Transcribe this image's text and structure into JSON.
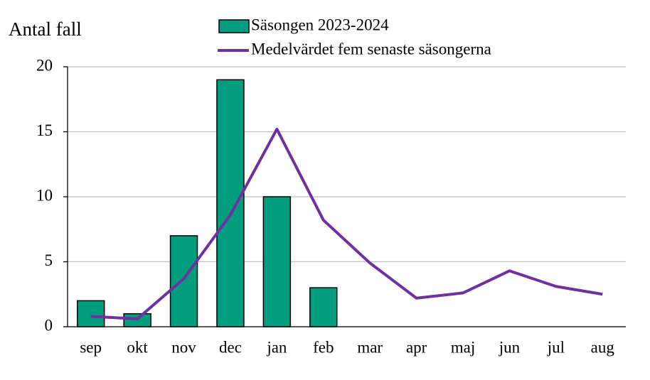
{
  "chart_data": {
    "type": "bar",
    "ylabel": "Antal fall",
    "categories": [
      "sep",
      "okt",
      "nov",
      "dec",
      "jan",
      "feb",
      "mar",
      "apr",
      "maj",
      "jun",
      "jul",
      "aug"
    ],
    "series": [
      {
        "name": "Säsongen 2023-2024",
        "type": "bar",
        "color": "#009e7e",
        "values": [
          2,
          1,
          7,
          19,
          10,
          3,
          null,
          null,
          null,
          null,
          null,
          null
        ]
      },
      {
        "name": "Medelvärdet fem senaste säsongerna",
        "type": "line",
        "color": "#7030a0",
        "values": [
          0.8,
          0.6,
          3.7,
          8.6,
          15.2,
          8.2,
          4.9,
          2.2,
          2.6,
          4.3,
          3.1,
          2.5
        ]
      }
    ],
    "ylim": [
      0,
      20
    ],
    "yticks": [
      0,
      5,
      10,
      15,
      20
    ],
    "grid": true
  }
}
